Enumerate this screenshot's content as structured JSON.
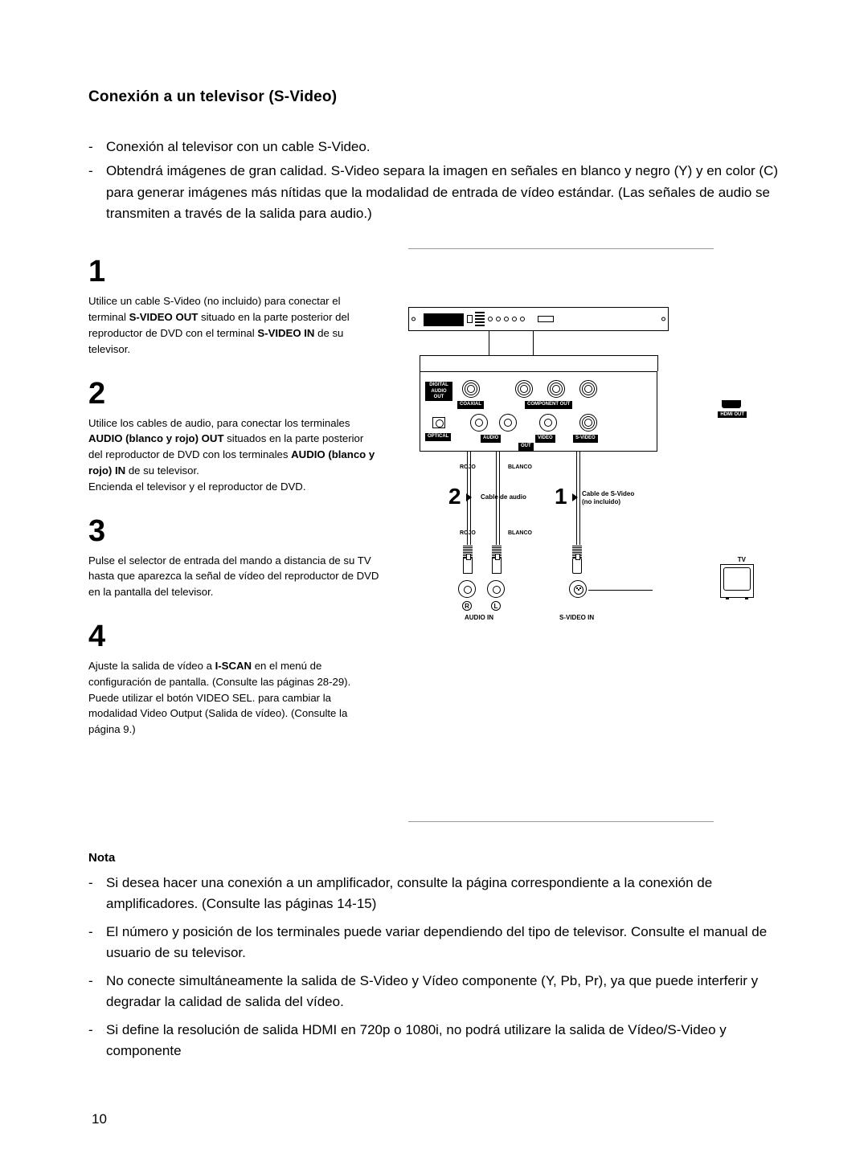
{
  "page_number": "10",
  "title": "Conexión a un televisor (S-Video)",
  "intro": [
    "Conexión al televisor con un cable S-Video.",
    "Obtendrá imágenes de gran calidad. S-Video separa la imagen en señales en blanco y negro (Y) y en color (C) para generar imágenes más nítidas que la modalidad de entrada de vídeo estándar. (Las señales de audio se transmiten a través de la salida para audio.)"
  ],
  "steps": [
    {
      "num": "1",
      "html": "Utilice un cable S-Video (no incluido) para conectar el terminal <b>S-VIDEO OUT</b> situado en la parte posterior del reproductor de DVD con el terminal <b>S-VIDEO IN</b> de su televisor."
    },
    {
      "num": "2",
      "html": "Utilice los cables de audio, para conectar los terminales <b>AUDIO (blanco y rojo) OUT</b> situados en la parte posterior del reproductor de DVD con los terminales <b>AUDIO (blanco y rojo) IN</b> de su televisor.<br>Encienda el televisor y el reproductor de DVD."
    },
    {
      "num": "3",
      "html": "Pulse el selector de entrada del mando a distancia de su TV hasta que aparezca la señal de vídeo del reproductor de DVD en la pantalla del televisor."
    },
    {
      "num": "4",
      "html": "Ajuste la salida de vídeo a <b>I-SCAN</b> en el menú de configuración de pantalla. (Consulte las páginas 28-29).<br>Puede utilizar el botón VIDEO SEL. para cambiar la modalidad Video Output (Salida de vídeo). (Consulte la página 9.)"
    }
  ],
  "nota_head": "Nota",
  "nota": [
    "Si desea hacer una conexión a un amplificador, consulte la página correspondiente a la conexión de amplificadores. (Consulte las páginas 14-15)",
    "El número y posición de los terminales puede variar dependiendo del tipo de televisor. Consulte el manual de usuario de su televisor.",
    "No conecte simultáneamente la salida de S-Video y Vídeo componente (Y, Pb, Pr), ya que puede interferir y degradar la calidad de salida del vídeo.",
    "Si define la resolución de salida HDMI en 720p o 1080i, no podrá utilizare la salida de Vídeo/S-Video y componente"
  ],
  "diagram": {
    "panel_labels": {
      "digital": "DIGITAL AUDIO OUT",
      "coaxial": "COAXIAL",
      "component": "COMPONENT OUT",
      "optical": "OPTICAL",
      "audio": "AUDIO",
      "out": "OUT",
      "video": "VIDEO",
      "svideo": "S-VIDEO",
      "hdmi": "HDMI OUT"
    },
    "rojo": "ROJO",
    "blanco": "BLANCO",
    "cable_audio": "Cable de audio",
    "cable_svideo_1": "Cable de S-Video",
    "cable_svideo_2": "(no incluido)",
    "tv": "TV",
    "audio_in": "AUDIO IN",
    "svideo_in": "S-VIDEO IN",
    "num1": "1",
    "num2": "2",
    "r": "R",
    "l": "L"
  },
  "colors": {
    "text": "#000000",
    "bg": "#ffffff",
    "rule": "#999999"
  },
  "fonts": {
    "body_pt": 12,
    "title_pt": 14,
    "stepnum_pt": 28,
    "diagram_small_pt": 6
  }
}
